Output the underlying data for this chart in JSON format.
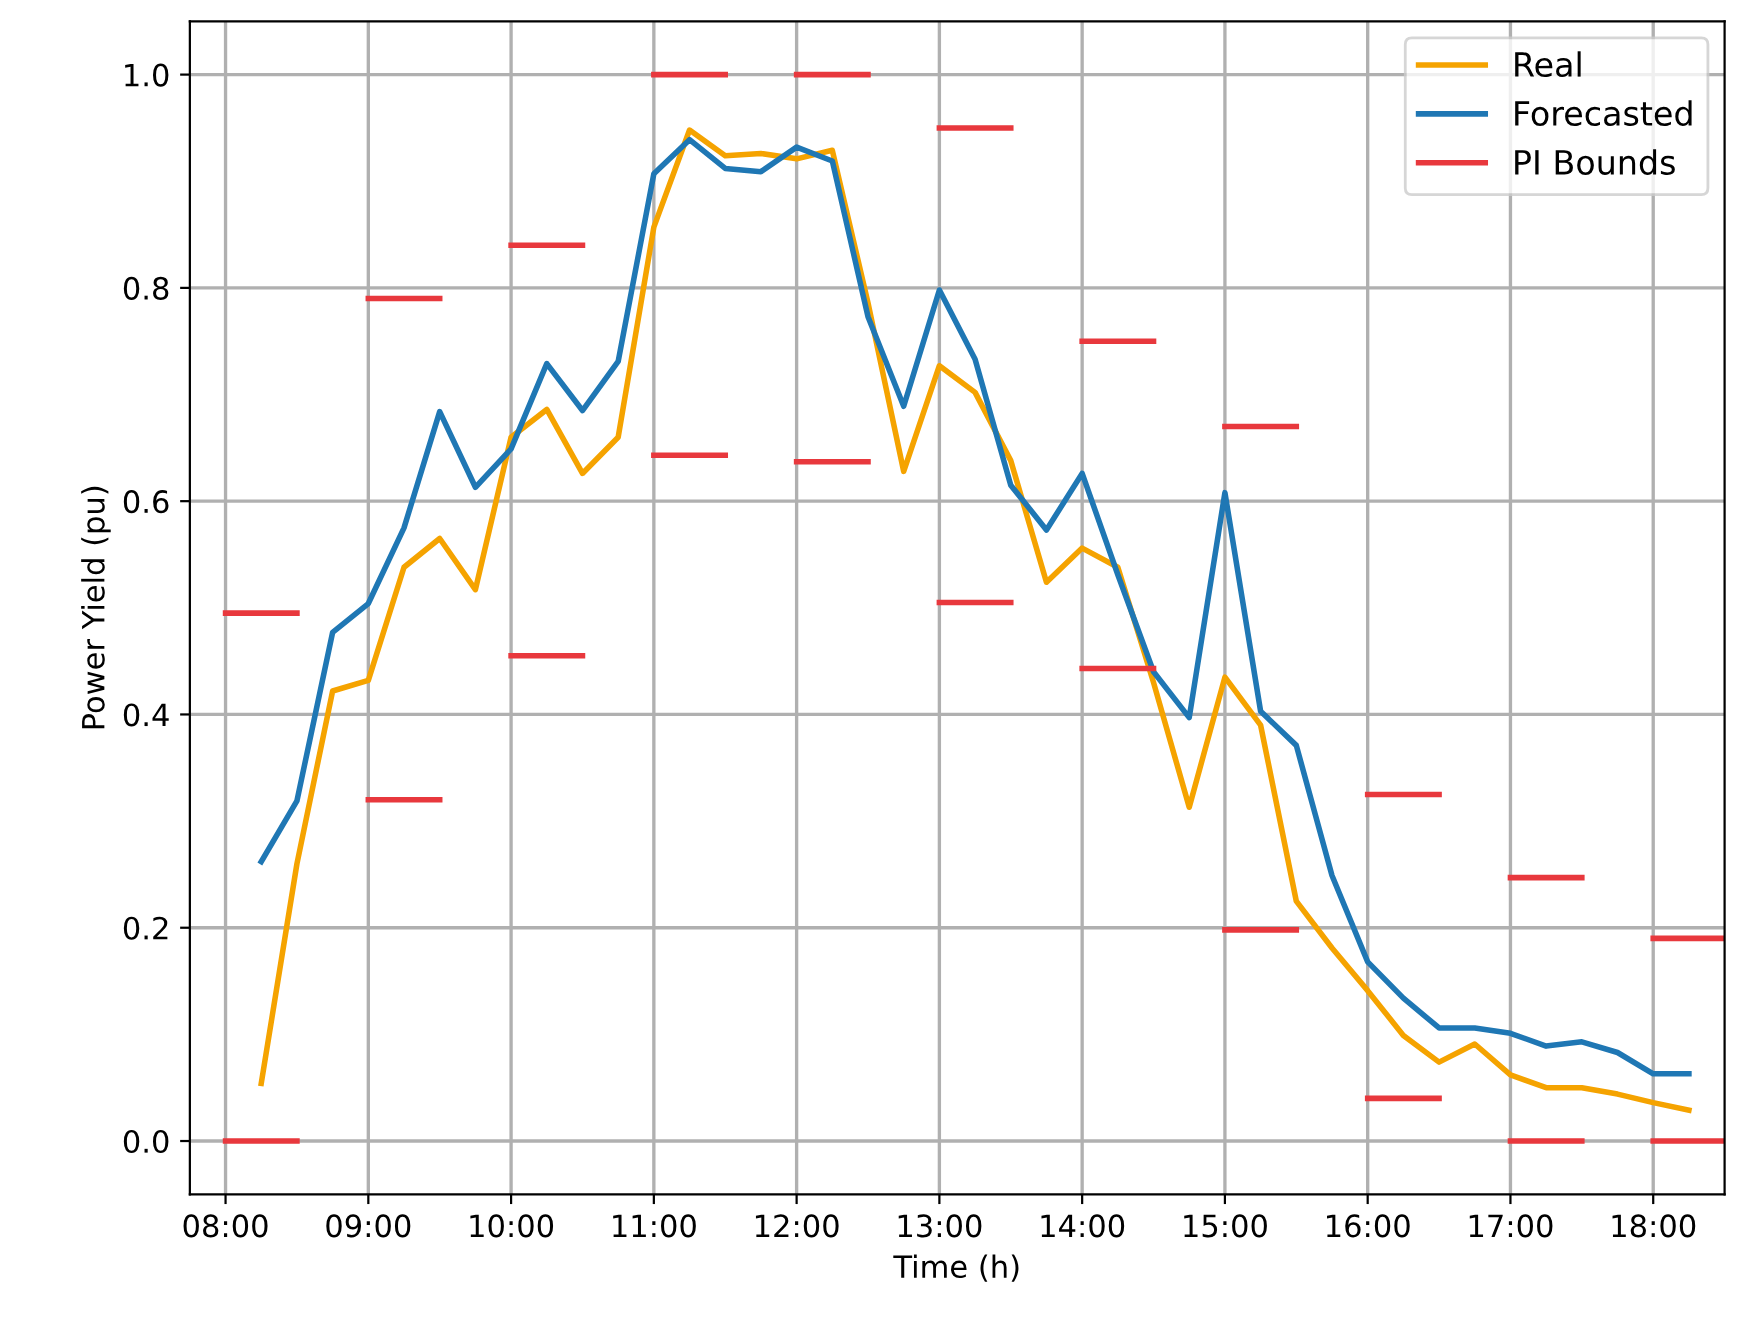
{
  "chart_data": {
    "type": "line",
    "xlabel": "Time (h)",
    "ylabel": "Power Yield (pu)",
    "x": [
      8.25,
      8.5,
      8.75,
      9,
      9.25,
      9.5,
      9.75,
      10,
      10.25,
      10.5,
      10.75,
      11,
      11.25,
      11.5,
      11.75,
      12,
      12.25,
      12.5,
      12.75,
      13,
      13.25,
      13.5,
      13.75,
      14,
      14.25,
      14.5,
      14.75,
      15,
      15.25,
      15.5,
      15.75,
      16,
      16.25,
      16.5,
      16.75,
      17,
      17.25,
      17.5,
      17.75,
      18,
      18.25
    ],
    "series": [
      {
        "name": "Real",
        "color": "#f5a300",
        "values": [
          0.054,
          0.26,
          0.422,
          0.432,
          0.538,
          0.565,
          0.517,
          0.66,
          0.686,
          0.626,
          0.66,
          0.857,
          0.948,
          0.924,
          0.926,
          0.921,
          0.929,
          0.786,
          0.628,
          0.727,
          0.702,
          0.638,
          0.524,
          0.556,
          0.538,
          0.43,
          0.313,
          0.435,
          0.39,
          0.225,
          0.181,
          0.141,
          0.099,
          0.074,
          0.091,
          0.062,
          0.05,
          0.05,
          0.044,
          0.036,
          0.029
        ]
      },
      {
        "name": "Forecasted",
        "color": "#1f77b4",
        "values": [
          0.262,
          0.319,
          0.477,
          0.504,
          0.575,
          0.684,
          0.613,
          0.649,
          0.729,
          0.685,
          0.731,
          0.907,
          0.939,
          0.912,
          0.909,
          0.932,
          0.919,
          0.773,
          0.689,
          0.798,
          0.733,
          0.615,
          0.573,
          0.626,
          0.531,
          0.44,
          0.397,
          0.608,
          0.403,
          0.371,
          0.249,
          0.168,
          0.134,
          0.106,
          0.106,
          0.101,
          0.089,
          0.093,
          0.083,
          0.063,
          0.063
        ]
      },
      {
        "name": "PI Bounds",
        "color": "#e8383d",
        "x": [
          8,
          8.5,
          null,
          9,
          9.5,
          null,
          10,
          10.5,
          null,
          11,
          11.5,
          null,
          12,
          12.5,
          null,
          13,
          13.5,
          null,
          14,
          14.5,
          null,
          15,
          15.5,
          null,
          16,
          16.5,
          null,
          17,
          17.5,
          null,
          18,
          18.5
        ],
        "values": [
          0.495,
          0.495,
          null,
          0.79,
          0.79,
          null,
          0.84,
          0.84,
          null,
          1.0,
          1.0,
          null,
          1.0,
          1.0,
          null,
          0.95,
          0.95,
          null,
          0.75,
          0.75,
          null,
          0.67,
          0.67,
          null,
          0.325,
          0.325,
          null,
          0.247,
          0.247,
          null,
          0.19,
          0.19
        ]
      },
      {
        "color": "#e8383d",
        "x": [
          8,
          8.5,
          null,
          9,
          9.5,
          null,
          10,
          10.5,
          null,
          11,
          11.5,
          null,
          12,
          12.5,
          null,
          13,
          13.5,
          null,
          14,
          14.5,
          null,
          15,
          15.5,
          null,
          16,
          16.5,
          null,
          17,
          17.5,
          null,
          18,
          18.5
        ],
        "values": [
          0,
          0,
          null,
          0.32,
          0.32,
          null,
          0.455,
          0.455,
          null,
          0.643,
          0.643,
          null,
          0.637,
          0.637,
          null,
          0.505,
          0.505,
          null,
          0.443,
          0.443,
          null,
          0.198,
          0.198,
          null,
          0.04,
          0.04,
          null,
          0,
          0,
          null,
          0,
          0
        ]
      }
    ],
    "xlim": [
      7.75,
      18.5
    ],
    "ylim": [
      -0.05,
      1.05
    ],
    "xticks": [
      {
        "value": 8,
        "label": "08:00"
      },
      {
        "value": 9,
        "label": "09:00"
      },
      {
        "value": 10,
        "label": "10:00"
      },
      {
        "value": 11,
        "label": "11:00"
      },
      {
        "value": 12,
        "label": "12:00"
      },
      {
        "value": 13,
        "label": "13:00"
      },
      {
        "value": 14,
        "label": "14:00"
      },
      {
        "value": 15,
        "label": "15:00"
      },
      {
        "value": 16,
        "label": "16:00"
      },
      {
        "value": 17,
        "label": "17:00"
      },
      {
        "value": 18,
        "label": "18:00"
      }
    ],
    "yticks": [
      {
        "value": 0,
        "label": "0.0"
      },
      {
        "value": 0.2,
        "label": "0.2"
      },
      {
        "value": 0.4,
        "label": "0.4"
      },
      {
        "value": 0.6,
        "label": "0.6"
      },
      {
        "value": 0.8,
        "label": "0.8"
      },
      {
        "value": 1.0,
        "label": "1.0"
      }
    ],
    "grid": true,
    "legend": "top right"
  }
}
